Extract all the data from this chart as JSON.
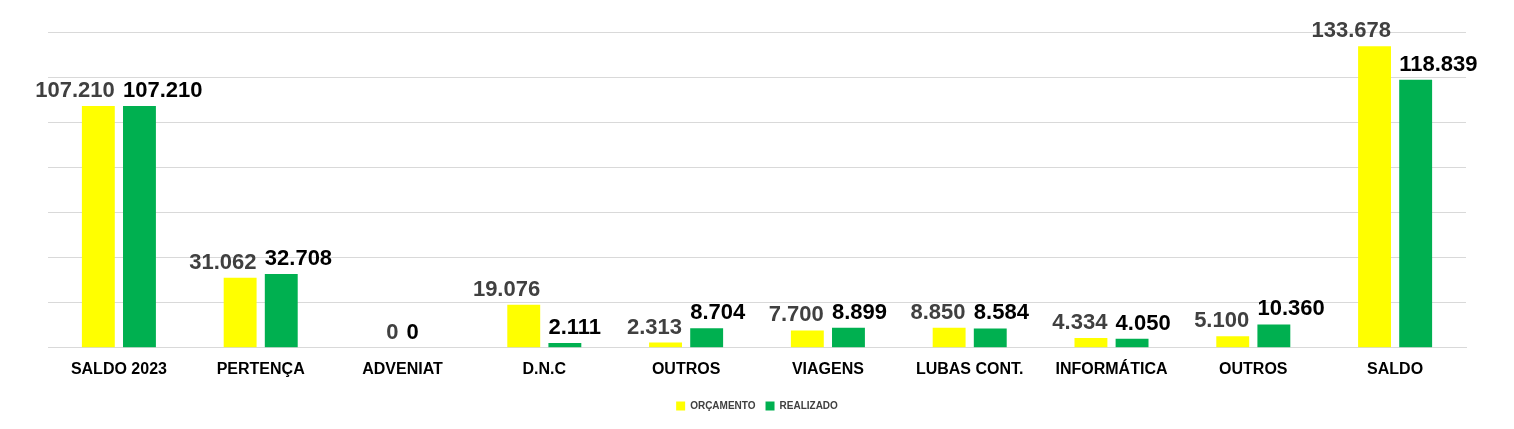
{
  "chart_data": {
    "type": "bar",
    "categories": [
      "SALDO 2023",
      "PERTENÇA",
      "ADVENIAT",
      "D.N.C",
      "OUTROS",
      "VIAGENS",
      "LUBAS CONT.",
      "INFORMÁTICA",
      "OUTROS",
      "SALDO"
    ],
    "series": [
      {
        "name": "ORÇAMENTO",
        "color": "#ffff00",
        "values": [
          107.21,
          31.062,
          0,
          19.076,
          2.313,
          7.7,
          8.85,
          4.334,
          5.1,
          133.678
        ],
        "value_labels": [
          "107.210",
          "31.062",
          "0",
          "19.076",
          "2.313",
          "7.700",
          "8.850",
          "4.334",
          "5.100",
          "133.678"
        ]
      },
      {
        "name": "REALIZADO",
        "color": "#00b050",
        "values": [
          107.21,
          32.708,
          0,
          2.111,
          8.704,
          8.899,
          8.584,
          4.05,
          10.36,
          118.839
        ],
        "value_labels": [
          "107.210",
          "32.708",
          "0",
          "2.111",
          "8.704",
          "8.899",
          "8.584",
          "4.050",
          "10.360",
          "118.839"
        ]
      }
    ],
    "ylim": [
      0,
      140
    ],
    "yticks": [
      {
        "value": 0,
        "label": null
      },
      {
        "value": 20,
        "label": null
      },
      {
        "value": 40,
        "label": null
      },
      {
        "value": 60,
        "label": null
      },
      {
        "value": 80,
        "label": null
      },
      {
        "value": 100,
        "label": null
      },
      {
        "value": 120,
        "label": null
      },
      {
        "value": 140,
        "label": null
      }
    ],
    "tick_labels": "x",
    "grid": "y",
    "legend": "bottom"
  }
}
